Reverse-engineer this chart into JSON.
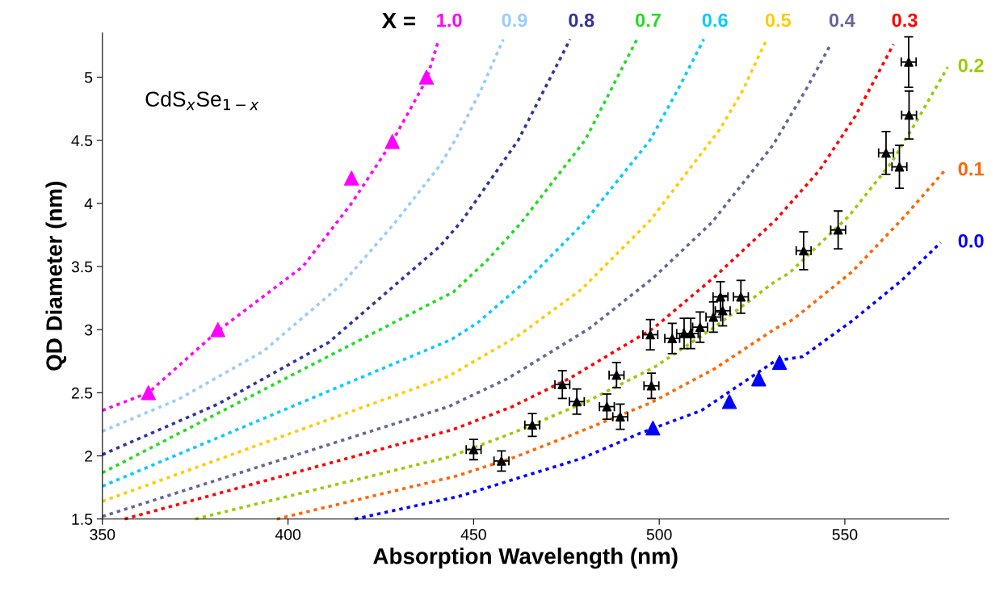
{
  "chart_data": {
    "type": "line",
    "xlabel": "Absorption Wavelength (nm)",
    "ylabel": "QD Diameter (nm)",
    "annotations": [
      "X =",
      "CdS$_{x}$Se$_{1−x}$"
    ],
    "xlim": [
      350,
      578
    ],
    "xticks": [
      350,
      400,
      450,
      500,
      550
    ],
    "ylim": [
      1.5,
      5.35
    ],
    "yticks": [
      1.5,
      2,
      2.5,
      3,
      3.5,
      4,
      4.5,
      5
    ],
    "grid": false,
    "marker": "none",
    "line_style": "dashed",
    "series": [
      {
        "name": "1.0",
        "color": "#ff00ff",
        "x": [
          350,
          362.4,
          381.1,
          404,
          417.1,
          428.1,
          437.3,
          440.4
        ],
        "values": [
          2.36,
          2.5,
          2.99,
          3.5,
          4.0,
          4.49,
          4.98,
          5.28
        ]
      },
      {
        "name": "0.9",
        "color": "#99ccff",
        "x": [
          350,
          370.6,
          393.4,
          414.5,
          428.6,
          440.9,
          445,
          452,
          458
        ],
        "values": [
          2.195,
          2.45,
          2.83,
          3.36,
          3.84,
          4.3,
          4.5,
          4.9,
          5.3
        ]
      },
      {
        "name": "0.8",
        "color": "#333399",
        "x": [
          350,
          381.1,
          411,
          440.9,
          446.8,
          462,
          469,
          476
        ],
        "values": [
          2.01,
          2.41,
          2.9,
          3.66,
          3.86,
          4.5,
          4.9,
          5.3
        ]
      },
      {
        "name": "0.7",
        "color": "#22dd22",
        "x": [
          350,
          444.6,
          454,
          462.6,
          480,
          487,
          494
        ],
        "values": [
          1.866,
          3.3,
          3.56,
          3.84,
          4.5,
          4.9,
          5.3
        ]
      },
      {
        "name": "0.6",
        "color": "#00ccff",
        "x": [
          350,
          443.9,
          451.1,
          464.7,
          479.8,
          497.5,
          505,
          512
        ],
        "values": [
          1.76,
          2.92,
          3.055,
          3.4,
          3.85,
          4.5,
          4.9,
          5.3
        ]
      },
      {
        "name": "0.5",
        "color": "#ffcc00",
        "x": [
          350,
          443.2,
          461.9,
          479.1,
          497.7,
          516.4,
          522.6,
          527,
          529
        ],
        "values": [
          1.64,
          2.63,
          2.95,
          3.32,
          3.87,
          4.59,
          4.9,
          5.18,
          5.3
        ]
      },
      {
        "name": "0.4",
        "color": "#666699",
        "x": [
          350,
          443.2,
          459,
          481.2,
          498.4,
          514.2,
          530.6,
          539.5,
          546.2
        ],
        "values": [
          1.52,
          2.39,
          2.61,
          3.01,
          3.41,
          3.85,
          4.46,
          4.9,
          5.26
        ]
      },
      {
        "name": "0.3",
        "color": "#ff0000",
        "x": [
          356,
          444.6,
          460.4,
          476.2,
          498.4,
          515,
          531.4,
          543.1,
          552.8,
          563.1
        ],
        "values": [
          1.5,
          2.21,
          2.39,
          2.62,
          3.01,
          3.42,
          3.87,
          4.26,
          4.69,
          5.26
        ]
      },
      {
        "name": "0.2",
        "color": "#99cc00",
        "x": [
          375,
          443.2,
          460.4,
          480.5,
          499.1,
          514.9,
          531.1,
          535.1,
          551.1,
          562.7,
          569.7,
          577.7
        ],
        "values": [
          1.5,
          1.99,
          2.18,
          2.43,
          2.71,
          3.02,
          3.38,
          3.45,
          3.9,
          4.33,
          4.67,
          5.08
        ]
      },
      {
        "name": "0.1",
        "color": "#ff6600",
        "x": [
          397,
          445.3,
          461.1,
          477.6,
          497.7,
          514.9,
          531.4,
          536,
          552,
          566.2,
          576.9
        ],
        "values": [
          1.5,
          1.84,
          1.99,
          2.18,
          2.42,
          2.69,
          3.01,
          3.08,
          3.46,
          3.9,
          4.26
        ]
      },
      {
        "name": "0.0",
        "color": "#0000ff",
        "x": [
          418,
          446.1,
          462.6,
          479.1,
          494.9,
          511.4,
          531.4,
          538.6,
          552,
          565.3,
          575.8
        ],
        "values": [
          1.5,
          1.68,
          1.83,
          1.98,
          2.18,
          2.36,
          2.755,
          2.785,
          3.07,
          3.39,
          3.69
        ]
      },
      {
        "type": "scatter",
        "marker": "triangle",
        "color": "#ff00ff",
        "x": [
          362.4,
          381.1,
          417.1,
          428.1,
          437.3
        ],
        "values": [
          2.5,
          3.0,
          4.2,
          4.49,
          5.0
        ]
      },
      {
        "type": "scatter",
        "marker": "triangle",
        "color": "#0000ff",
        "x": [
          498.3,
          518.9,
          526.8,
          532.4
        ],
        "values": [
          2.22,
          2.43,
          2.61,
          2.74
        ]
      },
      {
        "type": "scatter",
        "marker": "triangle",
        "color": "#000000",
        "x": [
          450.0,
          457.5,
          465.8,
          473.9,
          477.8,
          488.5,
          485.9,
          489.5,
          497.9,
          497.6,
          503.5,
          506.7,
          508.5,
          511.0,
          514.6,
          517.1,
          516.5,
          522.0,
          538.9,
          548.2,
          561.1,
          564.7,
          567.3,
          567.2
        ],
        "values": [
          2.05,
          1.96,
          2.245,
          2.565,
          2.43,
          2.64,
          2.39,
          2.31,
          2.555,
          2.96,
          2.93,
          2.97,
          2.97,
          3.02,
          3.1,
          3.15,
          3.26,
          3.26,
          3.625,
          3.79,
          4.4,
          4.29,
          4.7,
          5.12
        ],
        "errors": [
          0.08,
          0.08,
          0.09,
          0.11,
          0.1,
          0.1,
          0.1,
          0.1,
          0.1,
          0.12,
          0.12,
          0.12,
          0.12,
          0.12,
          0.12,
          0.12,
          0.12,
          0.13,
          0.15,
          0.15,
          0.17,
          0.17,
          0.19,
          0.2
        ],
        "xerrors": [
          2,
          2,
          2,
          2,
          2,
          2,
          2,
          2,
          2,
          2,
          2,
          2,
          2,
          2,
          2,
          2,
          2,
          2,
          2,
          2,
          2,
          2,
          2,
          2
        ]
      }
    ]
  }
}
